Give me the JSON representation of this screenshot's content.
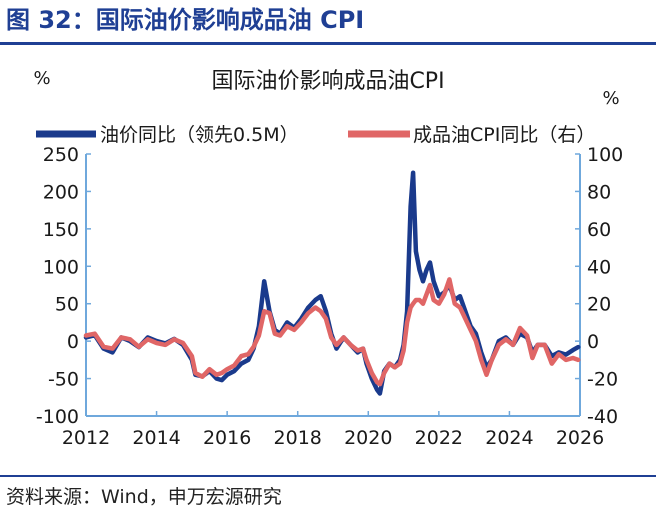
{
  "figure_title": "图 32：国际油价影响成品油 CPI",
  "source": "资料来源：Wind，申万宏源研究",
  "colors": {
    "oil": "#1a3a8c",
    "cpi": "#e06666",
    "axis": "#6fa8dc",
    "title": "#1f3f94"
  },
  "chart_data": {
    "type": "line",
    "title": "国际油价影响成品油CPI",
    "y_left_unit": "%",
    "y_right_unit": "%",
    "y_left_range": [
      -100,
      250
    ],
    "y_right_range": [
      -40,
      100
    ],
    "y_left_ticks": [
      "250",
      "200",
      "150",
      "100",
      "50",
      "0",
      "-50",
      "-100"
    ],
    "y_right_ticks": [
      "100",
      "80",
      "60",
      "40",
      "20",
      "0",
      "-20",
      "-40"
    ],
    "x_range": [
      2012,
      2026
    ],
    "x_ticks": [
      "2012",
      "2014",
      "2016",
      "2018",
      "2020",
      "2022",
      "2024",
      "2026"
    ],
    "grid": false,
    "legend_position": "top",
    "series": [
      {
        "name": "油价同比（领先0.5M）",
        "axis": "left",
        "points": [
          [
            2012.0,
            5
          ],
          [
            2012.25,
            8
          ],
          [
            2012.5,
            -10
          ],
          [
            2012.75,
            -15
          ],
          [
            2013.0,
            5
          ],
          [
            2013.25,
            0
          ],
          [
            2013.5,
            -8
          ],
          [
            2013.75,
            5
          ],
          [
            2014.0,
            0
          ],
          [
            2014.25,
            -3
          ],
          [
            2014.5,
            3
          ],
          [
            2014.75,
            -5
          ],
          [
            2015.0,
            -25
          ],
          [
            2015.1,
            -45
          ],
          [
            2015.3,
            -47
          ],
          [
            2015.5,
            -40
          ],
          [
            2015.7,
            -50
          ],
          [
            2015.85,
            -52
          ],
          [
            2016.0,
            -45
          ],
          [
            2016.2,
            -40
          ],
          [
            2016.4,
            -30
          ],
          [
            2016.6,
            -25
          ],
          [
            2016.75,
            -10
          ],
          [
            2016.9,
            20
          ],
          [
            2017.05,
            80
          ],
          [
            2017.2,
            40
          ],
          [
            2017.35,
            15
          ],
          [
            2017.5,
            10
          ],
          [
            2017.7,
            25
          ],
          [
            2017.9,
            18
          ],
          [
            2018.1,
            30
          ],
          [
            2018.3,
            45
          ],
          [
            2018.5,
            55
          ],
          [
            2018.65,
            60
          ],
          [
            2018.8,
            40
          ],
          [
            2018.95,
            10
          ],
          [
            2019.1,
            -10
          ],
          [
            2019.3,
            5
          ],
          [
            2019.5,
            -5
          ],
          [
            2019.7,
            -15
          ],
          [
            2019.85,
            -10
          ],
          [
            2019.95,
            -30
          ],
          [
            2020.1,
            -50
          ],
          [
            2020.25,
            -65
          ],
          [
            2020.33,
            -70
          ],
          [
            2020.45,
            -40
          ],
          [
            2020.6,
            -30
          ],
          [
            2020.75,
            -35
          ],
          [
            2020.9,
            -25
          ],
          [
            2021.0,
            -5
          ],
          [
            2021.1,
            40
          ],
          [
            2021.2,
            180
          ],
          [
            2021.27,
            225
          ],
          [
            2021.35,
            120
          ],
          [
            2021.45,
            95
          ],
          [
            2021.55,
            80
          ],
          [
            2021.65,
            95
          ],
          [
            2021.75,
            105
          ],
          [
            2021.85,
            80
          ],
          [
            2022.0,
            60
          ],
          [
            2022.15,
            65
          ],
          [
            2022.3,
            75
          ],
          [
            2022.45,
            55
          ],
          [
            2022.6,
            60
          ],
          [
            2022.75,
            40
          ],
          [
            2022.9,
            20
          ],
          [
            2023.05,
            10
          ],
          [
            2023.2,
            -15
          ],
          [
            2023.35,
            -35
          ],
          [
            2023.5,
            -25
          ],
          [
            2023.7,
            0
          ],
          [
            2023.9,
            5
          ],
          [
            2024.1,
            -5
          ],
          [
            2024.3,
            10
          ],
          [
            2024.5,
            5
          ],
          [
            2024.65,
            -15
          ],
          [
            2024.8,
            -5
          ],
          [
            2025.0,
            -5
          ],
          [
            2025.2,
            -20
          ],
          [
            2025.4,
            -15
          ],
          [
            2025.6,
            -18
          ],
          [
            2025.8,
            -12
          ],
          [
            2025.95,
            -8
          ]
        ]
      },
      {
        "name": "成品油CPI同比（右）",
        "axis": "right",
        "points": [
          [
            2012.0,
            3
          ],
          [
            2012.25,
            4
          ],
          [
            2012.5,
            -3
          ],
          [
            2012.75,
            -4
          ],
          [
            2013.0,
            2
          ],
          [
            2013.25,
            1
          ],
          [
            2013.5,
            -3
          ],
          [
            2013.75,
            1
          ],
          [
            2014.0,
            -1
          ],
          [
            2014.25,
            -2
          ],
          [
            2014.5,
            1
          ],
          [
            2014.75,
            -1
          ],
          [
            2015.0,
            -8
          ],
          [
            2015.1,
            -17
          ],
          [
            2015.3,
            -19
          ],
          [
            2015.5,
            -15
          ],
          [
            2015.7,
            -18
          ],
          [
            2015.85,
            -17
          ],
          [
            2016.0,
            -15
          ],
          [
            2016.2,
            -13
          ],
          [
            2016.4,
            -8
          ],
          [
            2016.6,
            -7
          ],
          [
            2016.75,
            -3
          ],
          [
            2016.9,
            3
          ],
          [
            2017.05,
            16
          ],
          [
            2017.2,
            15
          ],
          [
            2017.35,
            4
          ],
          [
            2017.5,
            3
          ],
          [
            2017.7,
            8
          ],
          [
            2017.9,
            6
          ],
          [
            2018.1,
            10
          ],
          [
            2018.3,
            15
          ],
          [
            2018.5,
            18
          ],
          [
            2018.65,
            16
          ],
          [
            2018.8,
            12
          ],
          [
            2018.95,
            2
          ],
          [
            2019.1,
            -2
          ],
          [
            2019.3,
            2
          ],
          [
            2019.5,
            -2
          ],
          [
            2019.7,
            -5
          ],
          [
            2019.85,
            -4
          ],
          [
            2019.95,
            -10
          ],
          [
            2020.1,
            -17
          ],
          [
            2020.25,
            -22
          ],
          [
            2020.33,
            -23
          ],
          [
            2020.45,
            -17
          ],
          [
            2020.6,
            -12
          ],
          [
            2020.75,
            -14
          ],
          [
            2020.9,
            -12
          ],
          [
            2021.0,
            -5
          ],
          [
            2021.1,
            10
          ],
          [
            2021.2,
            18
          ],
          [
            2021.27,
            20
          ],
          [
            2021.35,
            22
          ],
          [
            2021.45,
            22
          ],
          [
            2021.55,
            20
          ],
          [
            2021.65,
            25
          ],
          [
            2021.75,
            30
          ],
          [
            2021.85,
            22
          ],
          [
            2022.0,
            20
          ],
          [
            2022.15,
            25
          ],
          [
            2022.3,
            33
          ],
          [
            2022.45,
            20
          ],
          [
            2022.6,
            18
          ],
          [
            2022.75,
            12
          ],
          [
            2022.9,
            6
          ],
          [
            2023.05,
            0
          ],
          [
            2023.2,
            -10
          ],
          [
            2023.35,
            -18
          ],
          [
            2023.5,
            -10
          ],
          [
            2023.7,
            -2
          ],
          [
            2023.9,
            1
          ],
          [
            2024.1,
            -2
          ],
          [
            2024.3,
            7
          ],
          [
            2024.5,
            3
          ],
          [
            2024.65,
            -9
          ],
          [
            2024.8,
            -2
          ],
          [
            2025.0,
            -2
          ],
          [
            2025.2,
            -12
          ],
          [
            2025.4,
            -7
          ],
          [
            2025.6,
            -10
          ],
          [
            2025.8,
            -9
          ],
          [
            2025.95,
            -10
          ]
        ]
      }
    ]
  }
}
